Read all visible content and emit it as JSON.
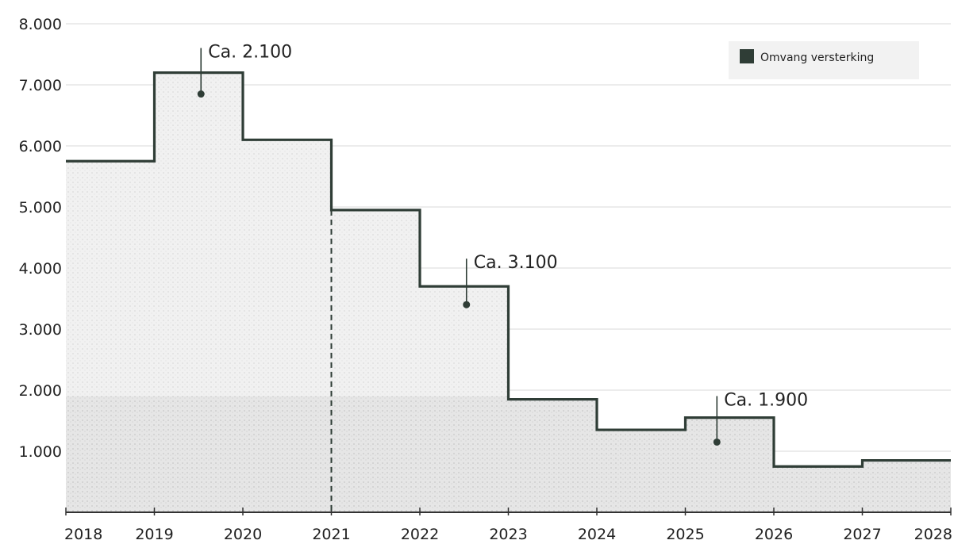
{
  "chart_data": {
    "type": "line",
    "step": "post",
    "legend": {
      "position": "top-right",
      "label": "Omvang versterking",
      "color": "#2f3d36"
    },
    "x_ticks": [
      "2018",
      "2019",
      "2020",
      "2021",
      "2022",
      "2023",
      "2024",
      "2025",
      "2026",
      "2027",
      "2028"
    ],
    "y_ticks": [
      "1.000",
      "2.000",
      "3.000",
      "4.000",
      "5.000",
      "6.000",
      "7.000",
      "8.000"
    ],
    "xlim": [
      2018,
      2028
    ],
    "ylim": [
      0,
      8000
    ],
    "grid": true,
    "series": [
      {
        "name": "Omvang versterking",
        "color": "#2f3d36",
        "points": [
          {
            "x": 2018.0,
            "y": 5750
          },
          {
            "x": 2019.0,
            "y": 7200
          },
          {
            "x": 2020.0,
            "y": 6100
          },
          {
            "x": 2021.0,
            "y": 4950
          },
          {
            "x": 2022.0,
            "y": 3700
          },
          {
            "x": 2023.0,
            "y": 1850
          },
          {
            "x": 2024.0,
            "y": 1350
          },
          {
            "x": 2025.0,
            "y": 1550
          },
          {
            "x": 2026.0,
            "y": 750
          },
          {
            "x": 2027.0,
            "y": 850
          },
          {
            "x": 2028.0,
            "y": 850
          }
        ]
      }
    ],
    "reference_line": {
      "x": 2021,
      "style": "dashed"
    },
    "annotations": [
      {
        "text": "Ca. 2.100",
        "x": 2019.5,
        "y": 6850
      },
      {
        "text": "Ca. 3.100",
        "x": 2022.5,
        "y": 3400
      },
      {
        "text": "Ca. 1.900",
        "x": 2025.33,
        "y": 1150
      }
    ]
  }
}
